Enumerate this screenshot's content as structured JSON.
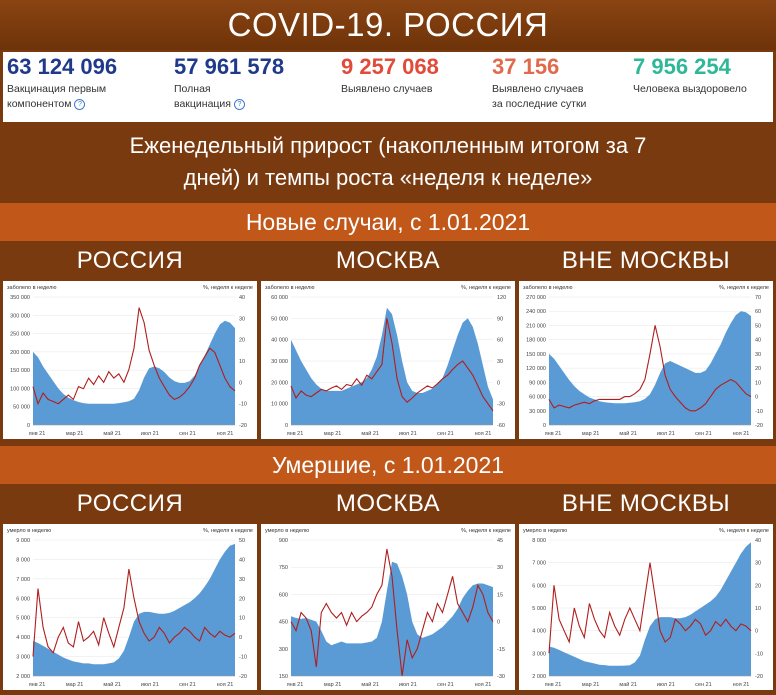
{
  "title": "COVID-19. РОССИЯ",
  "stats": [
    {
      "value": "63 124 096",
      "label1": "Вакцинация первым",
      "label2": "компонентом",
      "help": true,
      "color": "#1f3a8a"
    },
    {
      "value": "57 961 578",
      "label1": "Полная",
      "label2": "вакцинация",
      "help": true,
      "color": "#1f3a8a"
    },
    {
      "value": "9 257 068",
      "label1": "Выявлено случаев",
      "label2": "",
      "help": false,
      "color": "#e04b3a"
    },
    {
      "value": "37 156",
      "label1": "Выявлено случаев",
      "label2": "за последние сутки",
      "help": false,
      "color": "#e26a4c"
    },
    {
      "value": "7 956 254",
      "label1": "Человека выздоровело",
      "label2": "",
      "help": false,
      "color": "#2fb897"
    }
  ],
  "subtitle_line1": "Еженедельный прирост (накопленным итогом за 7",
  "subtitle_line2": "дней) и темпы роста «неделя к неделе»",
  "cases_section": "Новые случаи, с 1.01.2021",
  "deaths_section": "Умершие, с 1.01.2021",
  "colors": {
    "area": "#5b9bd5",
    "line": "#b01e1e",
    "band": "#c1581a",
    "dark": "#7a3a0f"
  },
  "chart_data": [
    {
      "type": "area",
      "group": "cases",
      "region": "РОССИЯ",
      "left_caption": "заболело в неделю",
      "right_caption": "%, неделя к неделе",
      "left_ticks": [
        "0",
        "50 000",
        "100 000",
        "150 000",
        "200 000",
        "250 000",
        "300 000",
        "350 000"
      ],
      "ylim": [
        0,
        350000
      ],
      "right_ticks": [
        "-20",
        "-10",
        "0",
        "10",
        "20",
        "30",
        "40"
      ],
      "y2lim": [
        -20,
        40
      ],
      "x_ticks": [
        "янв 21",
        "мар 21",
        "май 21",
        "июл 21",
        "сен 21",
        "ноя 21"
      ],
      "area": [
        200000,
        185000,
        160000,
        140000,
        120000,
        100000,
        85000,
        75000,
        68000,
        63000,
        60000,
        58000,
        58000,
        58000,
        58000,
        58000,
        58000,
        60000,
        62000,
        65000,
        72000,
        95000,
        130000,
        155000,
        160000,
        155000,
        145000,
        130000,
        120000,
        115000,
        115000,
        120000,
        135000,
        160000,
        190000,
        220000,
        250000,
        275000,
        285000,
        280000,
        265000
      ],
      "line": [
        -2,
        -10,
        -5,
        -8,
        -9,
        -10,
        -8,
        -6,
        -8,
        -2,
        -3,
        2,
        -1,
        3,
        0,
        5,
        2,
        4,
        0,
        6,
        16,
        35,
        28,
        15,
        8,
        2,
        -2,
        -6,
        -8,
        -7,
        -5,
        -2,
        2,
        8,
        12,
        16,
        14,
        8,
        2,
        -2,
        -4
      ]
    },
    {
      "type": "area",
      "group": "cases",
      "region": "МОСКВА",
      "left_caption": "заболело в неделю",
      "right_caption": "%, неделя к неделе",
      "left_ticks": [
        "0",
        "10 000",
        "20 000",
        "30 000",
        "40 000",
        "50 000",
        "60 000"
      ],
      "ylim": [
        0,
        60000
      ],
      "right_ticks": [
        "-60",
        "-30",
        "0",
        "30",
        "60",
        "90",
        "120"
      ],
      "y2lim": [
        -60,
        120
      ],
      "x_ticks": [
        "янв 21",
        "мар 21",
        "май 21",
        "июл 21",
        "сен 21",
        "ноя 21"
      ],
      "area": [
        40000,
        35000,
        30000,
        26000,
        22000,
        19000,
        17000,
        16000,
        16000,
        16000,
        16000,
        17000,
        18000,
        19000,
        20000,
        22000,
        26000,
        32000,
        42000,
        55000,
        52000,
        42000,
        30000,
        20000,
        16000,
        15000,
        15000,
        16000,
        17000,
        19000,
        22000,
        28000,
        35000,
        42000,
        48000,
        50000,
        46000,
        38000,
        28000,
        18000,
        12000
      ],
      "line": [
        -5,
        -22,
        -12,
        -18,
        -20,
        -15,
        -10,
        -12,
        -8,
        -5,
        -10,
        -3,
        -5,
        5,
        -4,
        10,
        5,
        15,
        25,
        90,
        55,
        5,
        -20,
        -28,
        -22,
        -15,
        -10,
        -5,
        -8,
        -2,
        5,
        10,
        18,
        25,
        30,
        20,
        10,
        -5,
        -20,
        -30,
        -40
      ]
    },
    {
      "type": "area",
      "group": "cases",
      "region": "ВНЕ МОСКВЫ",
      "left_caption": "заболело в неделю",
      "right_caption": "%, неделя к неделе",
      "left_ticks": [
        "0",
        "30 000",
        "60 000",
        "90 000",
        "120 000",
        "150 000",
        "180 000",
        "210 000",
        "240 000",
        "270 000"
      ],
      "ylim": [
        0,
        270000
      ],
      "right_ticks": [
        "-20",
        "-10",
        "0",
        "10",
        "20",
        "30",
        "40",
        "50",
        "60",
        "70"
      ],
      "y2lim": [
        -20,
        70
      ],
      "x_ticks": [
        "янв 21",
        "мар 21",
        "май 21",
        "июл 21",
        "сен 21",
        "ноя 21"
      ],
      "area": [
        150000,
        140000,
        125000,
        110000,
        95000,
        82000,
        72000,
        65000,
        58000,
        54000,
        50000,
        48000,
        47000,
        46000,
        46000,
        46000,
        47000,
        48000,
        50000,
        55000,
        65000,
        85000,
        110000,
        130000,
        135000,
        130000,
        125000,
        120000,
        115000,
        110000,
        110000,
        115000,
        130000,
        150000,
        170000,
        195000,
        215000,
        232000,
        240000,
        238000,
        230000
      ],
      "line": [
        -2,
        -8,
        -6,
        -7,
        -8,
        -6,
        -5,
        -4,
        -5,
        -3,
        -2,
        -2,
        -2,
        -2,
        -2,
        0,
        0,
        2,
        5,
        12,
        30,
        50,
        35,
        15,
        5,
        0,
        -4,
        -8,
        -10,
        -10,
        -8,
        -5,
        0,
        5,
        8,
        10,
        12,
        10,
        6,
        2,
        0
      ]
    },
    {
      "type": "area",
      "group": "deaths",
      "region": "РОССИЯ",
      "left_caption": "умерло в неделю",
      "right_caption": "%, неделя к неделе",
      "left_ticks": [
        "2 000",
        "3 000",
        "4 000",
        "5 000",
        "6 000",
        "7 000",
        "8 000",
        "9 000"
      ],
      "ylim": [
        2000,
        9000
      ],
      "right_ticks": [
        "-20",
        "-10",
        "0",
        "10",
        "20",
        "30",
        "40",
        "50"
      ],
      "y2lim": [
        -20,
        50
      ],
      "x_ticks": [
        "янв 21",
        "мар 21",
        "май 21",
        "июл 21",
        "сен 21",
        "ноя 21"
      ],
      "area": [
        3800,
        3700,
        3550,
        3400,
        3250,
        3100,
        2950,
        2850,
        2750,
        2700,
        2650,
        2650,
        2600,
        2600,
        2600,
        2650,
        2700,
        2900,
        3300,
        4000,
        4800,
        5200,
        5300,
        5300,
        5250,
        5200,
        5200,
        5250,
        5350,
        5500,
        5650,
        5800,
        6000,
        6250,
        6600,
        7000,
        7500,
        8000,
        8400,
        8700,
        8800
      ],
      "line": [
        -10,
        25,
        5,
        -5,
        -8,
        0,
        5,
        -3,
        -5,
        8,
        -2,
        0,
        3,
        -4,
        10,
        2,
        -5,
        5,
        15,
        35,
        20,
        8,
        2,
        -2,
        0,
        5,
        2,
        -3,
        0,
        2,
        5,
        3,
        0,
        -2,
        5,
        2,
        0,
        3,
        1,
        0,
        2
      ]
    },
    {
      "type": "area",
      "group": "deaths",
      "region": "МОСКВА",
      "left_caption": "умерло в неделю",
      "right_caption": "%, неделя к неделе",
      "left_ticks": [
        "150",
        "300",
        "450",
        "600",
        "750",
        "900"
      ],
      "ylim": [
        150,
        900
      ],
      "right_ticks": [
        "-30",
        "-15",
        "0",
        "15",
        "30",
        "45"
      ],
      "y2lim": [
        -30,
        45
      ],
      "x_ticks": [
        "янв 21",
        "мар 21",
        "май 21",
        "июл 21",
        "сен 21",
        "ноя 21"
      ],
      "area": [
        480,
        470,
        465,
        470,
        460,
        450,
        400,
        340,
        320,
        330,
        340,
        330,
        330,
        330,
        330,
        335,
        340,
        360,
        450,
        620,
        780,
        770,
        700,
        600,
        450,
        380,
        360,
        370,
        380,
        400,
        420,
        450,
        480,
        520,
        580,
        620,
        650,
        660,
        660,
        650,
        640
      ],
      "line": [
        0,
        -5,
        5,
        2,
        -5,
        -25,
        5,
        10,
        5,
        2,
        5,
        -2,
        5,
        0,
        3,
        5,
        8,
        15,
        20,
        40,
        25,
        -5,
        -30,
        -10,
        -20,
        -15,
        -5,
        5,
        0,
        10,
        5,
        15,
        25,
        10,
        5,
        0,
        8,
        20,
        15,
        5,
        0
      ]
    },
    {
      "type": "area",
      "group": "deaths",
      "region": "ВНЕ МОСКВЫ",
      "left_caption": "умерло в неделю",
      "right_caption": "%, неделя к неделе",
      "left_ticks": [
        "2 000",
        "3 000",
        "4 000",
        "5 000",
        "6 000",
        "7 000",
        "8 000"
      ],
      "ylim": [
        2000,
        8000
      ],
      "right_ticks": [
        "-20",
        "-10",
        "0",
        "10",
        "20",
        "30",
        "40"
      ],
      "y2lim": [
        -20,
        40
      ],
      "x_ticks": [
        "янв 21",
        "мар 21",
        "май 21",
        "июл 21",
        "сен 21",
        "ноя 21"
      ],
      "area": [
        3300,
        3250,
        3150,
        3050,
        2950,
        2850,
        2750,
        2650,
        2600,
        2550,
        2500,
        2480,
        2450,
        2450,
        2450,
        2460,
        2470,
        2600,
        2900,
        3600,
        4200,
        4500,
        4600,
        4600,
        4600,
        4550,
        4550,
        4600,
        4700,
        4850,
        5000,
        5150,
        5300,
        5500,
        5800,
        6200,
        6600,
        7000,
        7400,
        7700,
        7900
      ],
      "line": [
        -10,
        20,
        5,
        0,
        -5,
        10,
        2,
        -3,
        12,
        5,
        0,
        -3,
        8,
        2,
        -2,
        5,
        10,
        5,
        0,
        15,
        30,
        15,
        0,
        -5,
        -3,
        5,
        3,
        0,
        2,
        5,
        3,
        -2,
        0,
        4,
        2,
        5,
        2,
        0,
        3,
        2,
        0
      ]
    }
  ]
}
